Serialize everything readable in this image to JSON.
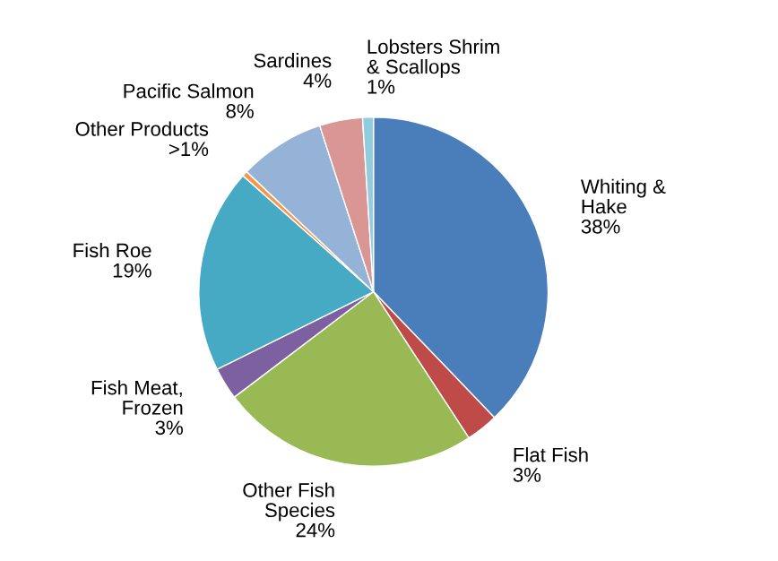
{
  "chart_data": {
    "type": "pie",
    "categories": [
      "Whiting &\nHake",
      "Flat Fish",
      "Other Fish\nSpecies",
      "Fish Meat,\nFrozen",
      "Fish Roe",
      "Other Products",
      "Pacific Salmon",
      "Sardines",
      "Lobsters Shrim\n& Scallops"
    ],
    "values": [
      38,
      3,
      24,
      3,
      19,
      0.5,
      8,
      4,
      1
    ],
    "value_labels": [
      "38%",
      "3%",
      "24%",
      "3%",
      "19%",
      ">1%",
      "8%",
      "4%",
      "1%"
    ],
    "colors": [
      "#4a7ebb",
      "#be4b48",
      "#98b954",
      "#7d60a0",
      "#46aac5",
      "#f79646",
      "#95b3d7",
      "#d99694",
      "#93cddd"
    ],
    "legend": false
  }
}
